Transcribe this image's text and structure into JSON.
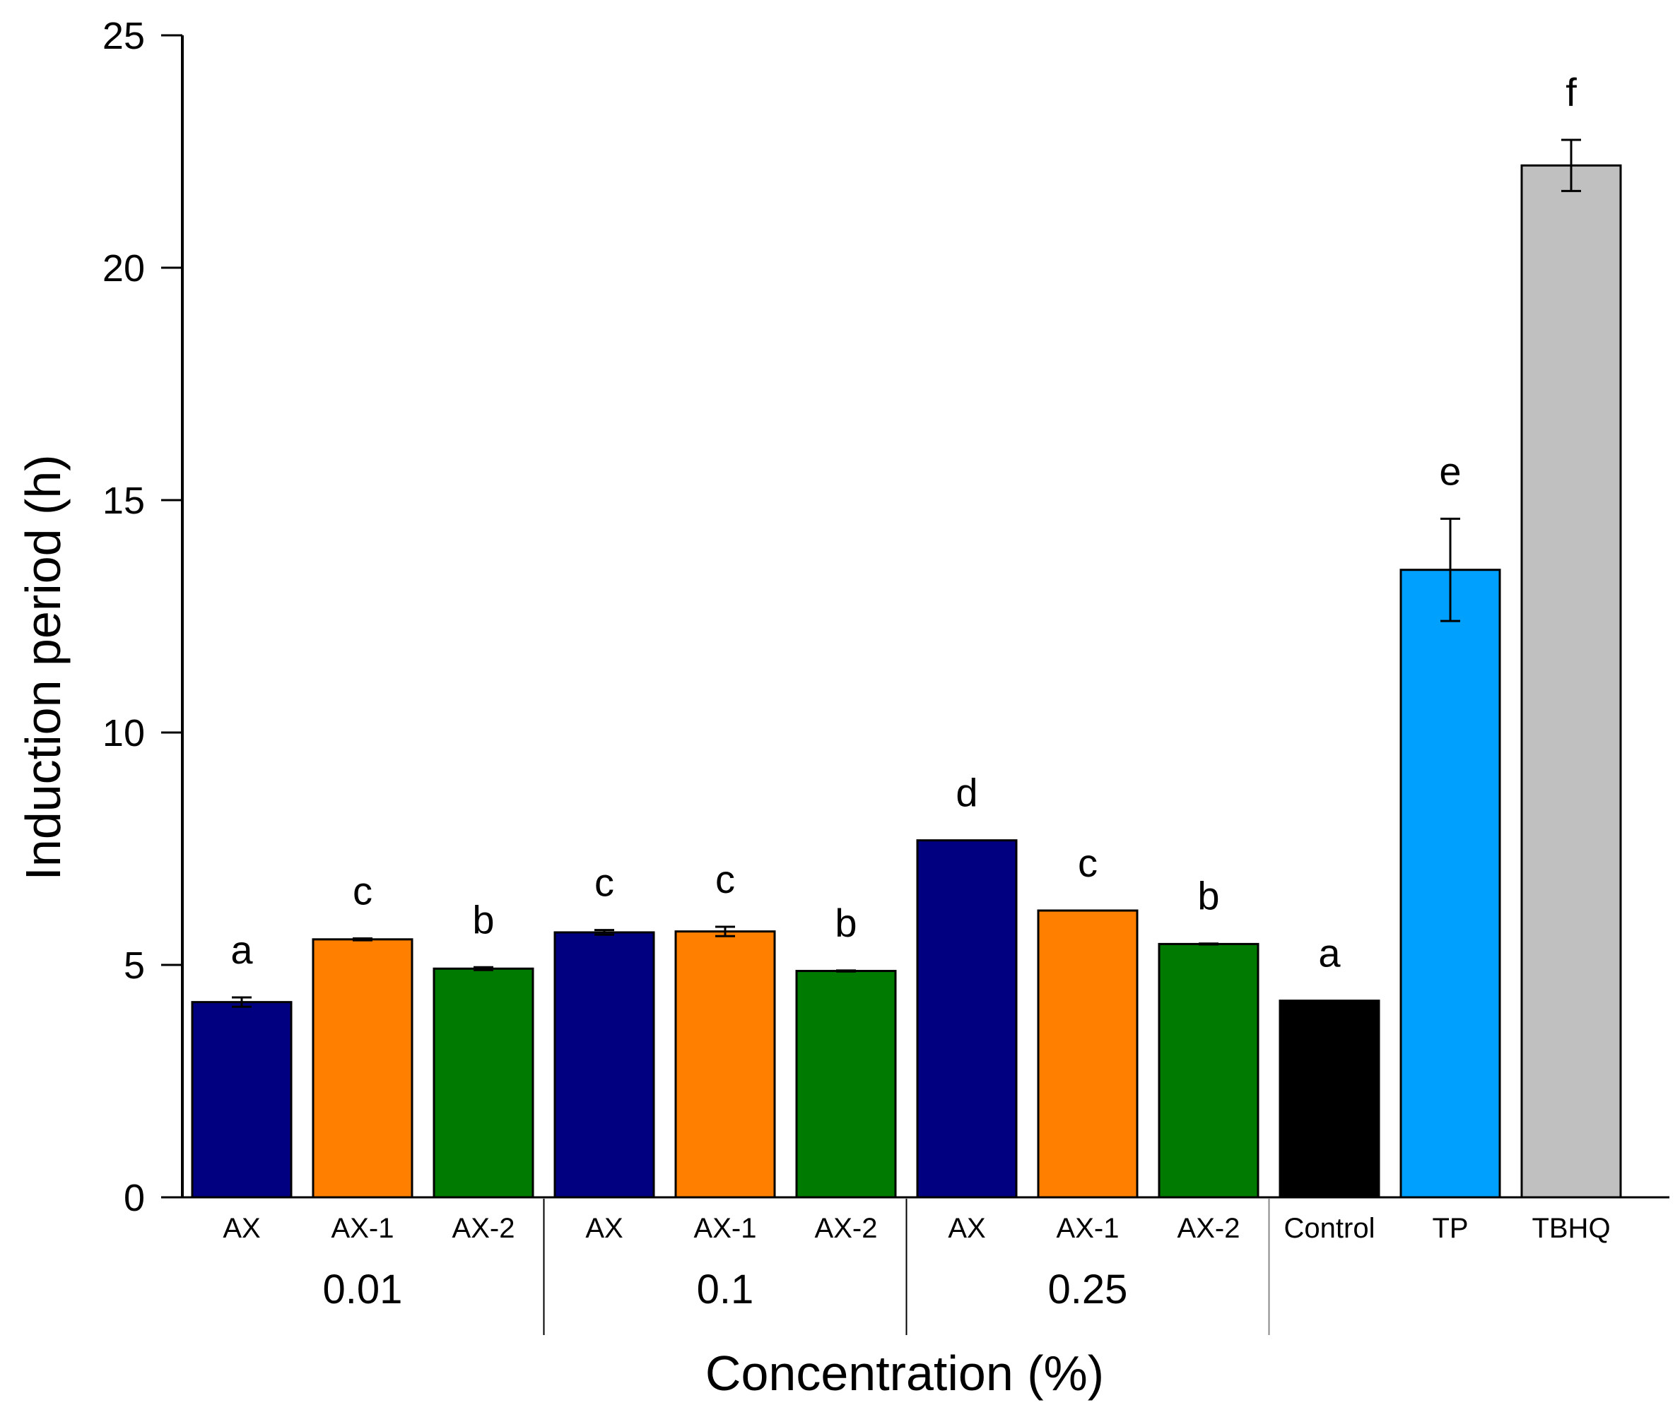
{
  "chart_data": {
    "type": "bar",
    "title": "",
    "xlabel": "Concentration (%)",
    "ylabel": "Induction period (h)",
    "ylim": [
      0,
      25
    ],
    "yticks": [
      0,
      5,
      10,
      15,
      20,
      25
    ],
    "grid": false,
    "bars": [
      {
        "category": "AX",
        "group": "0.01",
        "value": 4.2,
        "error": 0.1,
        "letter": "a",
        "color": "#000080"
      },
      {
        "category": "AX-1",
        "group": "0.01",
        "value": 5.55,
        "error": 0.02,
        "letter": "c",
        "color": "#FF8000"
      },
      {
        "category": "AX-2",
        "group": "0.01",
        "value": 4.92,
        "error": 0.03,
        "letter": "b",
        "color": "#007A00"
      },
      {
        "category": "AX",
        "group": "0.1",
        "value": 5.7,
        "error": 0.05,
        "letter": "c",
        "color": "#000080"
      },
      {
        "category": "AX-1",
        "group": "0.1",
        "value": 5.72,
        "error": 0.1,
        "letter": "c",
        "color": "#FF8000"
      },
      {
        "category": "AX-2",
        "group": "0.1",
        "value": 4.87,
        "error": 0.01,
        "letter": "b",
        "color": "#007A00"
      },
      {
        "category": "AX",
        "group": "0.25",
        "value": 7.68,
        "error": 0.0,
        "letter": "d",
        "color": "#000080"
      },
      {
        "category": "AX-1",
        "group": "0.25",
        "value": 6.17,
        "error": 0.0,
        "letter": "c",
        "color": "#FF8000"
      },
      {
        "category": "AX-2",
        "group": "0.25",
        "value": 5.45,
        "error": 0.01,
        "letter": "b",
        "color": "#007A00"
      },
      {
        "category": "Control",
        "group": "",
        "value": 4.23,
        "error": 0.0,
        "letter": "a",
        "color": "#000000"
      },
      {
        "category": "TP",
        "group": "",
        "value": 13.5,
        "error": 1.1,
        "letter": "e",
        "color": "#00A0FF"
      },
      {
        "category": "TBHQ",
        "group": "",
        "value": 22.2,
        "error": 0.55,
        "letter": "f",
        "color": "#C0C0C0"
      }
    ],
    "groups": [
      "0.01",
      "0.1",
      "0.25"
    ]
  }
}
